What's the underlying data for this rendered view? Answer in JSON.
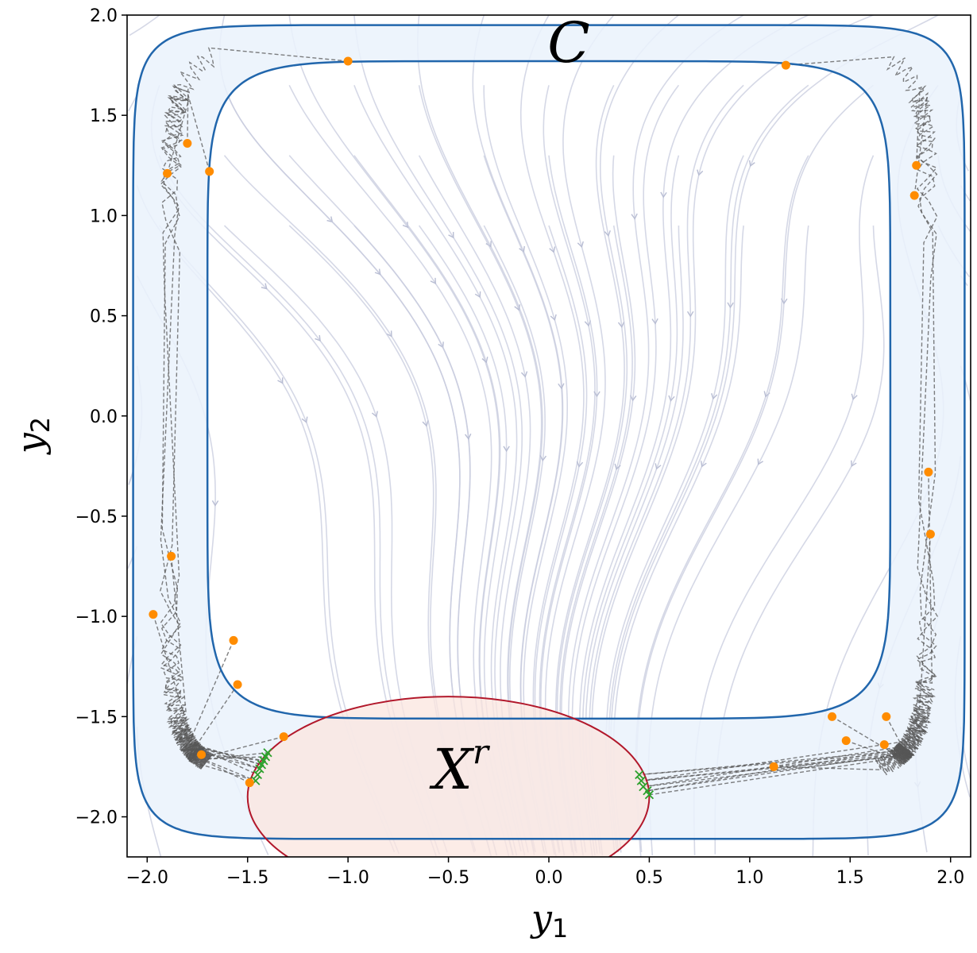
{
  "chart_data": {
    "type": "scatter",
    "xlabel": "y",
    "xlabel_sub": "1",
    "ylabel": "y",
    "ylabel_sub": "2",
    "xlim": [
      -2.1,
      2.1
    ],
    "ylim": [
      -2.2,
      2.0
    ],
    "xticks": [
      -2.0,
      -1.5,
      -1.0,
      -0.5,
      0.0,
      0.5,
      1.0,
      1.5,
      2.0
    ],
    "yticks": [
      -2.0,
      -1.5,
      -1.0,
      -0.5,
      0.0,
      0.5,
      1.0,
      1.5,
      2.0
    ],
    "xtick_labels": [
      "−2.0",
      "−1.5",
      "−1.0",
      "−0.5",
      "0.0",
      "0.5",
      "1.0",
      "1.5",
      "2.0"
    ],
    "ytick_labels": [
      "−2.0",
      "−1.5",
      "−1.0",
      "−0.5",
      "0.0",
      "0.5",
      "1.0",
      "1.5",
      "2.0"
    ],
    "grid": false,
    "region_labels": {
      "safe_set": "C",
      "target_set": "X",
      "target_set_sup": "r"
    },
    "safe_set_band": {
      "outer": {
        "cx": 0.0,
        "cy": -0.08,
        "rx": 2.07,
        "ry": 2.03,
        "power": 12
      },
      "inner": {
        "cx": 0.0,
        "cy": 0.13,
        "rx": 1.7,
        "ry": 1.64,
        "power": 8
      },
      "edge_color": "#2166ac",
      "fill_color": "#eaf2fb"
    },
    "target_set_ellipse": {
      "center": [
        -0.5,
        -1.9
      ],
      "radii": [
        1.0,
        0.5
      ],
      "edge_color": "#b2182b",
      "fill_color": "#fbe6df"
    },
    "initial_points": {
      "color": "#ff8c00",
      "points": [
        [
          -1.0,
          1.77
        ],
        [
          1.18,
          1.75
        ],
        [
          -1.8,
          1.36
        ],
        [
          -1.9,
          1.21
        ],
        [
          -1.69,
          1.22
        ],
        [
          1.83,
          1.25
        ],
        [
          1.82,
          1.1
        ],
        [
          1.89,
          -0.28
        ],
        [
          1.9,
          -0.59
        ],
        [
          -1.88,
          -0.7
        ],
        [
          -1.97,
          -0.99
        ],
        [
          -1.57,
          -1.12
        ],
        [
          -1.55,
          -1.34
        ],
        [
          -1.73,
          -1.69
        ],
        [
          -1.49,
          -1.83
        ],
        [
          -1.32,
          -1.6
        ],
        [
          1.41,
          -1.5
        ],
        [
          1.48,
          -1.62
        ],
        [
          1.68,
          -1.5
        ],
        [
          1.67,
          -1.64
        ],
        [
          1.12,
          -1.75
        ]
      ]
    },
    "terminal_points": {
      "color": "#2ca02c",
      "points": [
        [
          -1.46,
          -1.82
        ],
        [
          -1.45,
          -1.79
        ],
        [
          -1.44,
          -1.76
        ],
        [
          -1.43,
          -1.74
        ],
        [
          -1.42,
          -1.72
        ],
        [
          -1.41,
          -1.7
        ],
        [
          -1.4,
          -1.68
        ],
        [
          0.45,
          -1.79
        ],
        [
          0.46,
          -1.82
        ],
        [
          0.47,
          -1.85
        ],
        [
          0.49,
          -1.87
        ],
        [
          0.5,
          -1.89
        ]
      ]
    }
  }
}
